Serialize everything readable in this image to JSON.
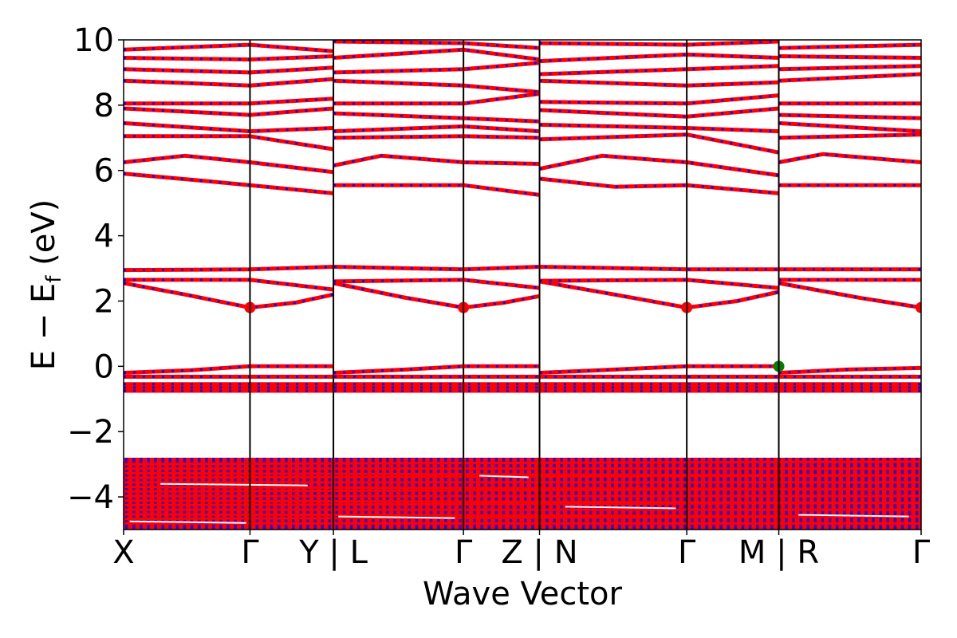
{
  "chart_data": {
    "type": "line",
    "title": "",
    "xlabel": "Wave Vector",
    "ylabel": "E − E_f (eV)",
    "ylabel_main": "E − E",
    "ylabel_sub": "f",
    "ylabel_unit": " (eV)",
    "ylim": [
      -5,
      10
    ],
    "xlim": [
      0,
      6.5
    ],
    "yticks": [
      -4,
      -2,
      0,
      2,
      4,
      6,
      8,
      10
    ],
    "ytick_labels": [
      "−4",
      "−2",
      "0",
      "2",
      "4",
      "6",
      "8",
      "10"
    ],
    "xticks": [
      0,
      1.03,
      1.71,
      2.77,
      3.39,
      4.59,
      5.34,
      6.5
    ],
    "xtick_labels": [
      "X",
      "Γ",
      "Y | L",
      "Γ",
      "Z | N",
      "Γ",
      "M | R",
      "Γ"
    ],
    "segment_boundaries": [
      1.71,
      3.39,
      5.34
    ],
    "high_symmetry_lines": [
      1.03,
      2.77,
      4.59
    ],
    "colors": {
      "spin_up": "#ff0000",
      "spin_down": "#0000ff",
      "vbm": "#008000",
      "cbm": "#ff0000",
      "axis": "#000000"
    },
    "dense_band_region": [
      -5,
      -2.8
    ],
    "series": [
      {
        "name": "band-1",
        "path": [
          [
            0,
            -0.75
          ],
          [
            6.5,
            -0.75
          ]
        ]
      },
      {
        "name": "band-2",
        "path": [
          [
            0,
            -0.65
          ],
          [
            6.5,
            -0.65
          ]
        ]
      },
      {
        "name": "band-3",
        "path": [
          [
            0,
            -0.55
          ],
          [
            6.5,
            -0.55
          ]
        ]
      },
      {
        "name": "band-4",
        "path": [
          [
            0,
            -0.32
          ],
          [
            6.5,
            -0.32
          ]
        ]
      },
      {
        "name": "band-5",
        "path": [
          [
            0,
            -0.2
          ],
          [
            0.55,
            -0.12
          ],
          [
            1.03,
            0.0
          ],
          [
            1.71,
            0.0
          ],
          [
            1.71,
            -0.2
          ],
          [
            2.3,
            -0.1
          ],
          [
            2.77,
            0.0
          ],
          [
            3.39,
            0.0
          ],
          [
            3.39,
            -0.2
          ],
          [
            4.0,
            -0.1
          ],
          [
            4.59,
            0.0
          ],
          [
            5.34,
            0.0
          ],
          [
            5.34,
            -0.2
          ],
          [
            5.9,
            -0.1
          ],
          [
            6.5,
            -0.05
          ]
        ]
      },
      {
        "name": "band-6",
        "path": [
          [
            0,
            2.55
          ],
          [
            0.5,
            2.2
          ],
          [
            1.03,
            1.8
          ],
          [
            1.4,
            1.95
          ],
          [
            1.71,
            2.2
          ],
          [
            1.71,
            2.55
          ],
          [
            2.3,
            2.1
          ],
          [
            2.77,
            1.8
          ],
          [
            3.1,
            1.95
          ],
          [
            3.39,
            2.15
          ],
          [
            3.39,
            2.6
          ],
          [
            4.0,
            2.2
          ],
          [
            4.59,
            1.8
          ],
          [
            5.0,
            2.0
          ],
          [
            5.34,
            2.28
          ],
          [
            5.34,
            2.55
          ],
          [
            6.0,
            2.1
          ],
          [
            6.5,
            1.8
          ]
        ]
      },
      {
        "name": "band-7",
        "path": [
          [
            0,
            2.65
          ],
          [
            1.03,
            2.65
          ],
          [
            1.71,
            2.35
          ],
          [
            1.71,
            2.6
          ],
          [
            2.77,
            2.65
          ],
          [
            3.39,
            2.4
          ],
          [
            3.39,
            2.62
          ],
          [
            4.59,
            2.65
          ],
          [
            5.34,
            2.4
          ],
          [
            5.34,
            2.65
          ],
          [
            6.5,
            2.65
          ]
        ]
      },
      {
        "name": "band-8",
        "path": [
          [
            0,
            2.95
          ],
          [
            1.03,
            2.97
          ],
          [
            1.71,
            3.05
          ],
          [
            2.77,
            2.97
          ],
          [
            3.39,
            3.05
          ],
          [
            4.59,
            2.97
          ],
          [
            5.34,
            2.97
          ],
          [
            6.5,
            2.97
          ]
        ]
      },
      {
        "name": "band-9",
        "path": [
          [
            0,
            5.9
          ],
          [
            0.6,
            5.7
          ],
          [
            1.03,
            5.55
          ],
          [
            1.71,
            5.3
          ],
          [
            1.71,
            5.55
          ],
          [
            2.77,
            5.55
          ],
          [
            3.39,
            5.25
          ],
          [
            3.39,
            5.75
          ],
          [
            4.0,
            5.5
          ],
          [
            4.59,
            5.55
          ],
          [
            5.34,
            5.3
          ],
          [
            5.34,
            5.55
          ],
          [
            6.5,
            5.55
          ]
        ]
      },
      {
        "name": "band-10",
        "path": [
          [
            0,
            6.25
          ],
          [
            0.5,
            6.45
          ],
          [
            1.03,
            6.25
          ],
          [
            1.71,
            5.95
          ],
          [
            1.71,
            6.15
          ],
          [
            2.1,
            6.45
          ],
          [
            2.77,
            6.25
          ],
          [
            3.39,
            6.2
          ],
          [
            3.39,
            6.05
          ],
          [
            3.9,
            6.45
          ],
          [
            4.59,
            6.25
          ],
          [
            5.34,
            5.85
          ],
          [
            5.34,
            6.25
          ],
          [
            5.7,
            6.5
          ],
          [
            6.5,
            6.25
          ]
        ]
      },
      {
        "name": "band-11",
        "path": [
          [
            0,
            7.05
          ],
          [
            1.03,
            7.05
          ],
          [
            1.71,
            6.65
          ],
          [
            1.71,
            7.0
          ],
          [
            2.77,
            7.05
          ],
          [
            3.39,
            7.0
          ],
          [
            3.39,
            6.95
          ],
          [
            4.59,
            7.1
          ],
          [
            5.34,
            6.55
          ],
          [
            5.34,
            7.0
          ],
          [
            6.5,
            7.1
          ]
        ]
      },
      {
        "name": "band-12",
        "path": [
          [
            0,
            7.45
          ],
          [
            1.03,
            7.2
          ],
          [
            1.71,
            7.3
          ],
          [
            1.71,
            7.2
          ],
          [
            2.77,
            7.35
          ],
          [
            3.39,
            7.2
          ],
          [
            3.39,
            7.4
          ],
          [
            4.59,
            7.3
          ],
          [
            5.34,
            7.2
          ],
          [
            5.34,
            7.45
          ],
          [
            6.5,
            7.2
          ]
        ]
      },
      {
        "name": "band-13",
        "path": [
          [
            0,
            7.9
          ],
          [
            1.03,
            7.7
          ],
          [
            1.71,
            7.9
          ],
          [
            1.71,
            7.75
          ],
          [
            2.77,
            7.6
          ],
          [
            3.39,
            7.5
          ],
          [
            3.39,
            7.85
          ],
          [
            4.59,
            7.65
          ],
          [
            5.34,
            7.9
          ],
          [
            5.34,
            7.7
          ],
          [
            6.5,
            7.6
          ]
        ]
      },
      {
        "name": "band-14",
        "path": [
          [
            0,
            8.05
          ],
          [
            1.03,
            8.05
          ],
          [
            1.71,
            8.2
          ],
          [
            1.71,
            8.05
          ],
          [
            2.77,
            8.05
          ],
          [
            3.39,
            8.35
          ],
          [
            3.39,
            8.1
          ],
          [
            4.59,
            8.05
          ],
          [
            5.34,
            8.3
          ],
          [
            5.34,
            8.05
          ],
          [
            6.5,
            8.05
          ]
        ]
      },
      {
        "name": "band-15",
        "path": [
          [
            0,
            8.75
          ],
          [
            1.03,
            8.6
          ],
          [
            1.71,
            8.8
          ],
          [
            1.71,
            8.75
          ],
          [
            2.77,
            8.6
          ],
          [
            3.39,
            8.4
          ],
          [
            3.39,
            8.75
          ],
          [
            4.59,
            8.6
          ],
          [
            5.34,
            8.7
          ],
          [
            5.34,
            8.75
          ],
          [
            6.5,
            8.95
          ]
        ]
      },
      {
        "name": "band-16",
        "path": [
          [
            0,
            9.1
          ],
          [
            1.03,
            9.0
          ],
          [
            1.71,
            9.15
          ],
          [
            1.71,
            9.0
          ],
          [
            2.77,
            9.1
          ],
          [
            3.39,
            9.3
          ],
          [
            3.39,
            8.95
          ],
          [
            4.59,
            9.1
          ],
          [
            5.34,
            9.2
          ],
          [
            5.34,
            9.1
          ],
          [
            6.5,
            9.2
          ]
        ]
      },
      {
        "name": "band-17",
        "path": [
          [
            0,
            9.45
          ],
          [
            1.03,
            9.4
          ],
          [
            1.71,
            9.5
          ],
          [
            1.71,
            9.45
          ],
          [
            2.77,
            9.7
          ],
          [
            3.39,
            9.4
          ],
          [
            3.39,
            9.35
          ],
          [
            4.59,
            9.55
          ],
          [
            5.34,
            9.45
          ],
          [
            5.34,
            9.5
          ],
          [
            6.5,
            9.45
          ]
        ]
      },
      {
        "name": "band-18",
        "path": [
          [
            0,
            9.7
          ],
          [
            1.03,
            9.85
          ],
          [
            1.71,
            9.65
          ],
          [
            1.71,
            9.95
          ],
          [
            2.77,
            9.9
          ],
          [
            3.39,
            9.75
          ],
          [
            3.39,
            9.9
          ],
          [
            4.59,
            9.85
          ],
          [
            5.34,
            9.95
          ],
          [
            5.34,
            9.75
          ],
          [
            6.5,
            9.85
          ]
        ]
      }
    ],
    "markers": [
      {
        "name": "cbm-marker",
        "x": 1.03,
        "y": 1.8,
        "color": "#ff0000"
      },
      {
        "name": "cbm-marker",
        "x": 2.77,
        "y": 1.8,
        "color": "#ff0000"
      },
      {
        "name": "cbm-marker",
        "x": 4.59,
        "y": 1.8,
        "color": "#ff0000"
      },
      {
        "name": "cbm-marker",
        "x": 6.5,
        "y": 1.8,
        "color": "#ff0000"
      },
      {
        "name": "vbm-marker",
        "x": 5.34,
        "y": 0.0,
        "color": "#008000"
      }
    ]
  }
}
